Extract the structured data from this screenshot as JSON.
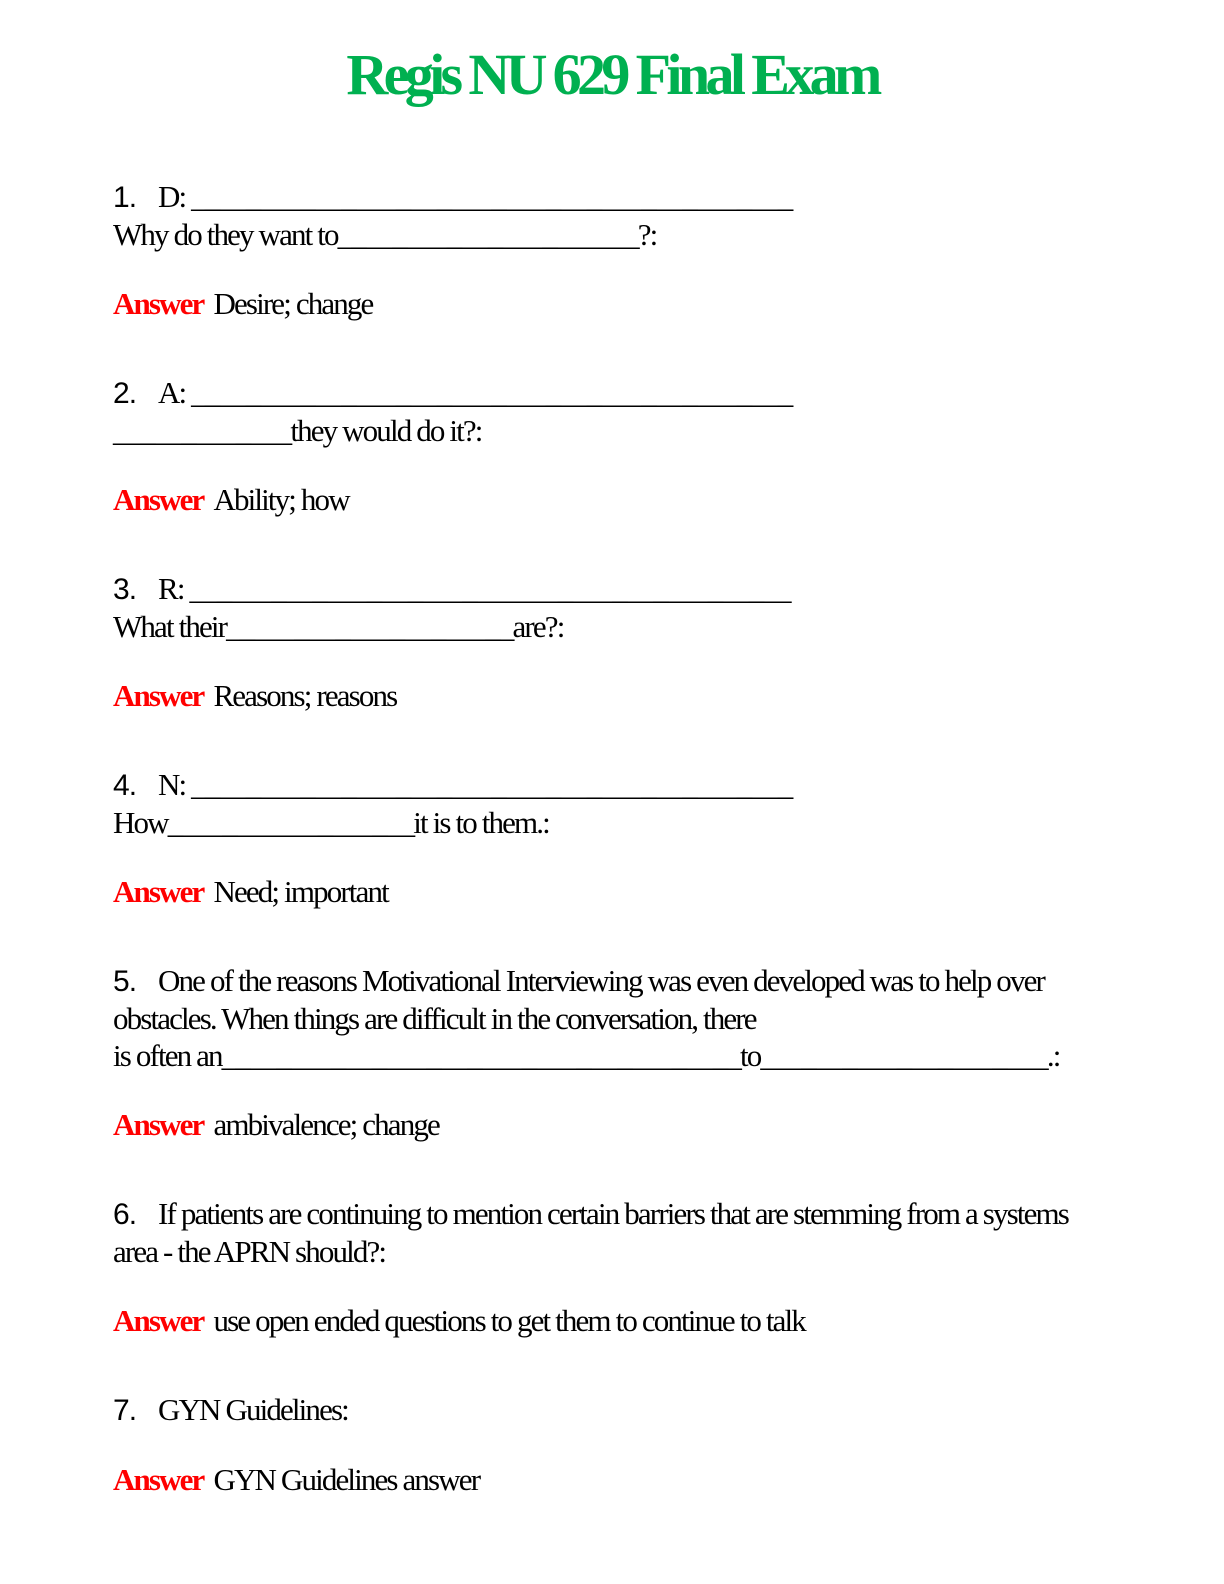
{
  "title": "Regis NU 629 Final Exam",
  "labels": {
    "answer": "Answer"
  },
  "colors": {
    "title_green": "#00B050",
    "answer_red": "#FF0000",
    "body_text": "#000000"
  },
  "questions": [
    {
      "number": "1.",
      "lines": [
        "D: ____________________________________________",
        "Why do they want to______________________?:"
      ],
      "answer": "Desire; change"
    },
    {
      "number": "2.",
      "lines": [
        "A: ____________________________________________",
        "_____________they would do it?:"
      ],
      "answer": "Ability; how"
    },
    {
      "number": "3.",
      "lines": [
        "R: ____________________________________________",
        "What their_____________________are?:"
      ],
      "answer": "Reasons; reasons"
    },
    {
      "number": "4.",
      "lines": [
        "N: ____________________________________________",
        "How__________________it is to them.:"
      ],
      "answer": "Need; important"
    },
    {
      "number": "5.",
      "lines": [
        "One of the reasons Motivational Interviewing was even developed was to help over",
        "obstacles. When things are difficult in the conversation, there",
        "is often an______________________________________to_____________________.:"
      ],
      "answer": "ambivalence; change"
    },
    {
      "number": "6.",
      "lines": [
        "If patients are continuing to mention certain barriers that are stemming from a systems",
        "area - the APRN should?:"
      ],
      "answer": "use open ended questions to get them to continue to talk"
    },
    {
      "number": "7.",
      "lines": [
        "GYN Guidelines:"
      ],
      "answer": "GYN Guidelines answer"
    }
  ]
}
